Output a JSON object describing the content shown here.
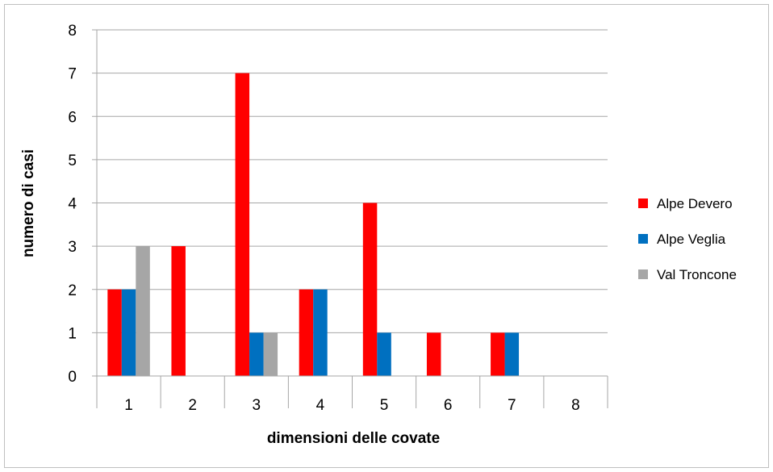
{
  "chart_data": {
    "type": "bar",
    "title": "",
    "xlabel": "dimensioni delle covate",
    "ylabel": "numero di casi",
    "categories": [
      "1",
      "2",
      "3",
      "4",
      "5",
      "6",
      "7",
      "8"
    ],
    "ylim": [
      0,
      8
    ],
    "yticks": [
      "0",
      "1",
      "2",
      "3",
      "4",
      "5",
      "6",
      "7",
      "8"
    ],
    "grid": true,
    "legend_position": "right",
    "series": [
      {
        "name": "Alpe Devero",
        "color": "#ff0000",
        "values": [
          2,
          3,
          7,
          2,
          4,
          1,
          1,
          0
        ]
      },
      {
        "name": "Alpe Veglia",
        "color": "#0070c0",
        "values": [
          2,
          0,
          1,
          2,
          1,
          0,
          1,
          0
        ]
      },
      {
        "name": "Val Troncone",
        "color": "#a6a6a6",
        "values": [
          3,
          0,
          1,
          0,
          0,
          0,
          0,
          0
        ]
      }
    ]
  }
}
